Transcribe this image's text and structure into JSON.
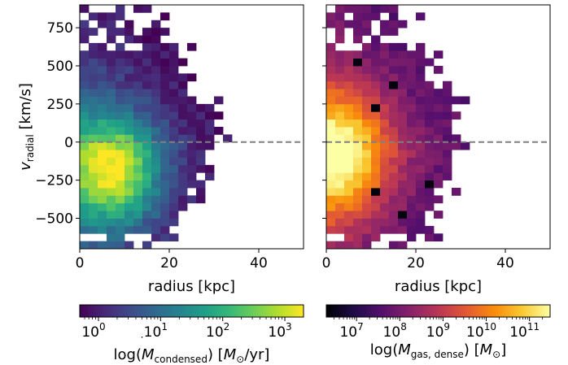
{
  "chart_data": [
    {
      "type": "heatmap",
      "panel": "left",
      "xlabel": "radius [kpc]",
      "ylabel": "v_radial [km/s]",
      "ylabel_main": "v",
      "ylabel_sub": "radial",
      "ylabel_unit": " [km/s]",
      "xlim": [
        0,
        50
      ],
      "ylim": [
        -700,
        900
      ],
      "x_ticks": [
        0,
        20,
        40
      ],
      "x_tick_labels": [
        "0",
        "20",
        "40"
      ],
      "y_ticks": [
        -500,
        -250,
        0,
        250,
        500,
        750
      ],
      "y_tick_labels": [
        "−500",
        "−250",
        "0",
        "250",
        "500",
        "750"
      ],
      "reference_line": {
        "y": 0,
        "style": "dashed",
        "color": "#808080"
      },
      "colormap": "viridis",
      "bins": {
        "x_width_kpc": 2.0,
        "y_width_kms": 50
      },
      "peak_region": {
        "x": [
          0,
          16
        ],
        "y": [
          -450,
          100
        ]
      },
      "colorbar": {
        "label": "log(Ṁ_condensed) [M_⊙/yr]",
        "label_prefix": "log(",
        "label_var": "M",
        "label_sub": "condensed",
        "label_mid": ") [",
        "label_msun": "M",
        "label_sun_symbol": "⊙",
        "label_end": "/yr]",
        "scale": "log",
        "range": [
          0.5,
          2000
        ],
        "ticks": [
          1,
          10,
          100,
          1000
        ],
        "tick_bases": [
          "10",
          "10",
          "10",
          "10"
        ],
        "tick_exponents": [
          "0",
          "1",
          "2",
          "3"
        ]
      }
    },
    {
      "type": "heatmap",
      "panel": "right",
      "xlabel": "radius [kpc]",
      "xlim": [
        0,
        50
      ],
      "ylim": [
        -700,
        900
      ],
      "x_ticks": [
        0,
        20,
        40
      ],
      "x_tick_labels": [
        "0",
        "20",
        "40"
      ],
      "reference_line": {
        "y": 0,
        "style": "dashed",
        "color": "#808080"
      },
      "colormap": "inferno",
      "bins": {
        "x_width_kpc": 2.0,
        "y_width_kms": 50
      },
      "peak_region": {
        "x": [
          0,
          10
        ],
        "y": [
          -300,
          100
        ]
      },
      "colorbar": {
        "label": "log(M_gas,dense) [M_⊙]",
        "label_prefix": "log(",
        "label_var": "M",
        "label_sub": "gas, dense",
        "label_mid": ") [",
        "label_msun": "M",
        "label_sun_symbol": "⊙",
        "label_end": "]",
        "scale": "log",
        "range": [
          2000000,
          300000000000
        ],
        "ticks": [
          10000000,
          100000000,
          1000000000,
          10000000000,
          100000000000
        ],
        "tick_bases": [
          "10",
          "10",
          "10",
          "10",
          "10"
        ],
        "tick_exponents": [
          "7",
          "8",
          "9",
          "10",
          "11"
        ]
      }
    }
  ]
}
